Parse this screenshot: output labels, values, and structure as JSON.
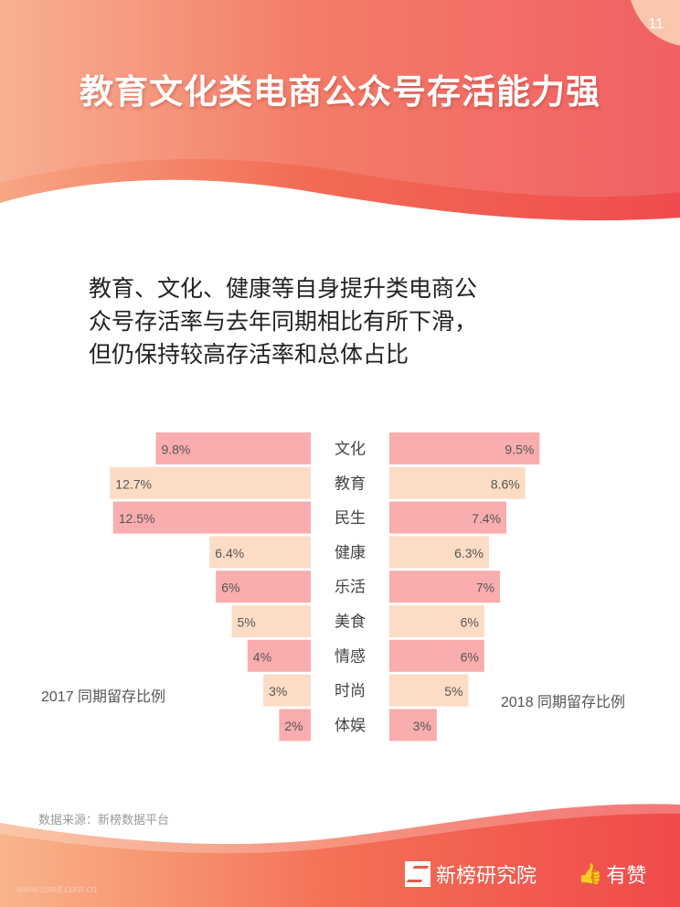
{
  "page_number": "11",
  "title": "教育文化类电商公众号存活能力强",
  "subtitle_lines": [
    "教育、文化、健康等自身提升类电商公",
    "众号存活率与去年同期相比有所下滑，",
    "但仍保持较高存活率和总体占比"
  ],
  "chart_data": {
    "type": "bar",
    "orientation": "horizontal-back-to-back",
    "categories": [
      "文化",
      "教育",
      "民生",
      "健康",
      "乐活",
      "美食",
      "情感",
      "时尚",
      "体娱"
    ],
    "series": [
      {
        "name": "2017 同期留存比例",
        "values": [
          9.8,
          12.7,
          12.5,
          6.4,
          6,
          5,
          4,
          3,
          2
        ],
        "labels": [
          "9.8%",
          "12.7%",
          "12.5%",
          "6.4%",
          "6%",
          "5%",
          "4%",
          "3%",
          "2%"
        ]
      },
      {
        "name": "2018 同期留存比例",
        "values": [
          9.5,
          8.6,
          7.4,
          6.3,
          7,
          6,
          6,
          5,
          3
        ],
        "labels": [
          "9.5%",
          "8.6%",
          "7.4%",
          "6.3%",
          "7%",
          "6%",
          "6%",
          "5%",
          "3%"
        ]
      }
    ],
    "bar_colors": [
      "#f9adae",
      "#fcdcc4"
    ],
    "legend": false
  },
  "source": "数据来源：新榜数据平台",
  "brand": {
    "name": "新榜研究院",
    "partner": "有赞"
  },
  "watermark": "www.useit.com.cn",
  "colors": {
    "accent": "#f2564a",
    "accent_light": "#f9a98c"
  }
}
